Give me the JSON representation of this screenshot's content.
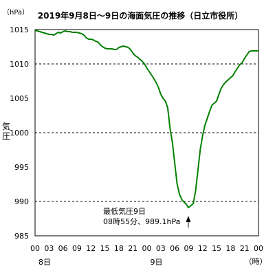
{
  "chart_data": {
    "type": "line",
    "title": "2019年9月8日～9日の海面気圧の推移（日立市役所）",
    "unit_label": "（hPa）",
    "ylabel": "気圧",
    "xlabel": "（時）",
    "ylim": [
      985,
      1015
    ],
    "y_ticks": [
      985,
      990,
      995,
      1000,
      1005,
      1010,
      1015
    ],
    "y_gridlines": [
      990,
      1000,
      1010
    ],
    "x_tick_labels": [
      "00",
      "03",
      "06",
      "09",
      "12",
      "15",
      "18",
      "21",
      "00",
      "03",
      "06",
      "09",
      "12",
      "15",
      "18",
      "21",
      "00"
    ],
    "day_labels": [
      {
        "text": "8日",
        "at_hour": 0
      },
      {
        "text": "9日",
        "at_hour": 24
      }
    ],
    "x_range_hours": [
      0,
      48
    ],
    "line_color": "#008000",
    "series": [
      {
        "x_hours": [
          0,
          0.5,
          1,
          1.5,
          2,
          2.5,
          3,
          3.5,
          4,
          4.5,
          5,
          5.5,
          6,
          6.5,
          7,
          7.5,
          8,
          8.5,
          9,
          9.5,
          10,
          10.5,
          11,
          11.5,
          12,
          12.5,
          13,
          13.5,
          14,
          14.5,
          15,
          15.5,
          16,
          16.5,
          17,
          17.5,
          18,
          18.5,
          19,
          19.5,
          20,
          20.5,
          21,
          21.5,
          22,
          22.5,
          23,
          23.5,
          24,
          24.5,
          25,
          25.5,
          26,
          26.5,
          27,
          27.5,
          28,
          28.5,
          29,
          29.5,
          30,
          30.5,
          31,
          31.5,
          32,
          32.5,
          32.92,
          33.5,
          34,
          34.5,
          35,
          35.5,
          36,
          36.5,
          37,
          37.5,
          38,
          38.5,
          39,
          39.5,
          40,
          40.5,
          41,
          41.5,
          42,
          42.5,
          43,
          43.5,
          44,
          44.5,
          45,
          45.5,
          46,
          46.5,
          47,
          47.5,
          48
        ],
        "y_hPa": [
          1014.9,
          1014.8,
          1014.7,
          1014.6,
          1014.5,
          1014.4,
          1014.3,
          1014.3,
          1014.2,
          1014.4,
          1014.6,
          1014.5,
          1014.7,
          1014.8,
          1014.7,
          1014.7,
          1014.6,
          1014.6,
          1014.6,
          1014.5,
          1014.4,
          1014.2,
          1013.8,
          1013.6,
          1013.6,
          1013.5,
          1013.3,
          1013.2,
          1012.8,
          1012.5,
          1012.3,
          1012.2,
          1012.2,
          1012.2,
          1012.1,
          1012.1,
          1012.4,
          1012.5,
          1012.6,
          1012.5,
          1012.4,
          1012.1,
          1011.6,
          1011.2,
          1011.0,
          1010.7,
          1010.4,
          1010.0,
          1009.4,
          1008.9,
          1008.4,
          1007.9,
          1007.3,
          1006.6,
          1005.6,
          1005.0,
          1004.6,
          1003.6,
          1000.6,
          998.6,
          995.6,
          992.6,
          991.1,
          990.3,
          989.9,
          989.6,
          989.1,
          989.4,
          989.7,
          991.6,
          994.6,
          997.6,
          999.6,
          1001.1,
          1002.1,
          1003.1,
          1004.0,
          1004.3,
          1004.6,
          1005.6,
          1006.5,
          1007.0,
          1007.4,
          1007.7,
          1008.0,
          1008.3,
          1008.9,
          1009.4,
          1009.9,
          1010.2,
          1010.8,
          1011.3,
          1011.8,
          1011.9,
          1011.9,
          1011.9,
          1011.9
        ]
      }
    ],
    "annotation": {
      "line1": "最低気圧9日",
      "line2": "08時55分、989.1hPa",
      "x_hours": 32.92,
      "y_hPa": 989.1
    }
  }
}
